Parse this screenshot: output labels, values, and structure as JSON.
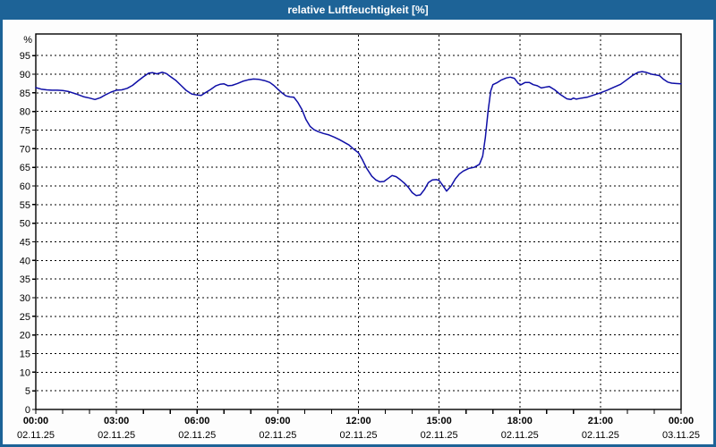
{
  "window": {
    "title": "relative Luftfeuchtigkeit [%]"
  },
  "colors": {
    "titlebar_blue": "#1d6397",
    "window_border_blue": "#1d6397",
    "plot_background": "#ffffff",
    "grid_color": "#000000",
    "axis_color": "#000000",
    "line_color": "#0e0ea6",
    "label_color": "#000000"
  },
  "chart_data": {
    "type": "line",
    "title": "relative Luftfeuchtigkeit [%]",
    "ylabel": "%",
    "xlabel": "",
    "ylim": [
      0,
      100.8
    ],
    "xlim_hours": [
      0,
      24
    ],
    "grid": "dashed-black",
    "legend": "none",
    "y_ticks": [
      0,
      5,
      10,
      15,
      20,
      25,
      30,
      35,
      40,
      45,
      50,
      55,
      60,
      65,
      70,
      75,
      80,
      85,
      90,
      95
    ],
    "x_minor_tick_every_hours": 1,
    "x_ticks": [
      {
        "hour": 0,
        "time": "00:00",
        "date": "02.11.25"
      },
      {
        "hour": 3,
        "time": "03:00",
        "date": "02.11.25"
      },
      {
        "hour": 6,
        "time": "06:00",
        "date": "02.11.25"
      },
      {
        "hour": 9,
        "time": "09:00",
        "date": "02.11.25"
      },
      {
        "hour": 12,
        "time": "12:00",
        "date": "02.11.25"
      },
      {
        "hour": 15,
        "time": "15:00",
        "date": "02.11.25"
      },
      {
        "hour": 18,
        "time": "18:00",
        "date": "02.11.25"
      },
      {
        "hour": 21,
        "time": "21:00",
        "date": "02.11.25"
      },
      {
        "hour": 24,
        "time": "00:00",
        "date": "03.11.25"
      }
    ],
    "series": [
      {
        "name": "relative Luftfeuchtigkeit [%]",
        "points": [
          [
            0,
            86.4
          ],
          [
            0.2,
            86.0
          ],
          [
            0.4,
            85.8
          ],
          [
            0.6,
            85.7
          ],
          [
            0.8,
            85.7
          ],
          [
            1,
            85.6
          ],
          [
            1.2,
            85.4
          ],
          [
            1.5,
            84.7
          ],
          [
            1.8,
            83.9
          ],
          [
            2,
            83.6
          ],
          [
            2.2,
            83.2
          ],
          [
            2.4,
            83.7
          ],
          [
            2.6,
            84.5
          ],
          [
            2.8,
            85.2
          ],
          [
            3,
            85.7
          ],
          [
            3.2,
            85.8
          ],
          [
            3.4,
            86.2
          ],
          [
            3.6,
            87.0
          ],
          [
            3.8,
            88.2
          ],
          [
            4,
            89.3
          ],
          [
            4.2,
            90.3
          ],
          [
            4.35,
            90.4
          ],
          [
            4.5,
            90.1
          ],
          [
            4.7,
            90.5
          ],
          [
            4.85,
            90.2
          ],
          [
            5,
            89.4
          ],
          [
            5.2,
            88.4
          ],
          [
            5.4,
            87.0
          ],
          [
            5.6,
            85.6
          ],
          [
            5.8,
            84.7
          ],
          [
            6,
            84.4
          ],
          [
            6.15,
            84.3
          ],
          [
            6.3,
            85.0
          ],
          [
            6.5,
            85.9
          ],
          [
            6.7,
            86.9
          ],
          [
            6.85,
            87.3
          ],
          [
            7,
            87.4
          ],
          [
            7.15,
            86.9
          ],
          [
            7.3,
            87.0
          ],
          [
            7.5,
            87.5
          ],
          [
            7.7,
            88.1
          ],
          [
            7.9,
            88.5
          ],
          [
            8.1,
            88.7
          ],
          [
            8.3,
            88.6
          ],
          [
            8.5,
            88.3
          ],
          [
            8.7,
            87.8
          ],
          [
            8.85,
            87.0
          ],
          [
            9,
            86.0
          ],
          [
            9.15,
            85.0
          ],
          [
            9.3,
            84.2
          ],
          [
            9.45,
            83.9
          ],
          [
            9.6,
            83.8
          ],
          [
            9.75,
            82.4
          ],
          [
            9.9,
            80.5
          ],
          [
            10.05,
            77.8
          ],
          [
            10.2,
            76.0
          ],
          [
            10.35,
            75.1
          ],
          [
            10.5,
            74.6
          ],
          [
            10.7,
            74.1
          ],
          [
            10.9,
            73.7
          ],
          [
            11.1,
            73.1
          ],
          [
            11.3,
            72.4
          ],
          [
            11.5,
            71.6
          ],
          [
            11.65,
            71.0
          ],
          [
            11.8,
            70.0
          ],
          [
            12,
            68.9
          ],
          [
            12.15,
            67.0
          ],
          [
            12.3,
            64.8
          ],
          [
            12.5,
            62.6
          ],
          [
            12.65,
            61.6
          ],
          [
            12.8,
            61.1
          ],
          [
            12.95,
            61.2
          ],
          [
            13.1,
            62.0
          ],
          [
            13.25,
            62.8
          ],
          [
            13.4,
            62.5
          ],
          [
            13.55,
            61.7
          ],
          [
            13.7,
            60.8
          ],
          [
            13.85,
            59.7
          ],
          [
            14,
            58.2
          ],
          [
            14.15,
            57.4
          ],
          [
            14.3,
            57.6
          ],
          [
            14.45,
            59.0
          ],
          [
            14.6,
            60.9
          ],
          [
            14.75,
            61.6
          ],
          [
            14.9,
            61.7
          ],
          [
            15,
            61.5
          ],
          [
            15.15,
            60.0
          ],
          [
            15.28,
            58.6
          ],
          [
            15.45,
            60.0
          ],
          [
            15.6,
            61.9
          ],
          [
            15.75,
            63.2
          ],
          [
            15.9,
            64.0
          ],
          [
            16.1,
            64.7
          ],
          [
            16.3,
            65.0
          ],
          [
            16.5,
            65.8
          ],
          [
            16.62,
            68.0
          ],
          [
            16.72,
            73.0
          ],
          [
            16.82,
            80.0
          ],
          [
            16.92,
            85.5
          ],
          [
            17,
            87.2
          ],
          [
            17.15,
            87.7
          ],
          [
            17.3,
            88.4
          ],
          [
            17.5,
            89.0
          ],
          [
            17.65,
            89.2
          ],
          [
            17.8,
            88.9
          ],
          [
            17.95,
            87.5
          ],
          [
            18.05,
            87.2
          ],
          [
            18.2,
            87.8
          ],
          [
            18.35,
            87.8
          ],
          [
            18.5,
            87.2
          ],
          [
            18.65,
            86.9
          ],
          [
            18.8,
            86.3
          ],
          [
            19,
            86.6
          ],
          [
            19.1,
            86.7
          ],
          [
            19.3,
            85.8
          ],
          [
            19.5,
            84.6
          ],
          [
            19.75,
            83.4
          ],
          [
            19.9,
            83.2
          ],
          [
            20,
            83.6
          ],
          [
            20.1,
            83.3
          ],
          [
            20.3,
            83.6
          ],
          [
            20.5,
            83.8
          ],
          [
            20.75,
            84.4
          ],
          [
            21,
            85.0
          ],
          [
            21.25,
            85.7
          ],
          [
            21.5,
            86.5
          ],
          [
            21.75,
            87.3
          ],
          [
            22,
            88.6
          ],
          [
            22.2,
            89.7
          ],
          [
            22.4,
            90.5
          ],
          [
            22.55,
            90.7
          ],
          [
            22.7,
            90.5
          ],
          [
            22.9,
            90.0
          ],
          [
            23.05,
            89.8
          ],
          [
            23.2,
            89.6
          ],
          [
            23.35,
            88.6
          ],
          [
            23.5,
            87.9
          ],
          [
            23.65,
            87.6
          ],
          [
            23.8,
            87.5
          ],
          [
            24,
            87.4
          ]
        ]
      }
    ]
  }
}
